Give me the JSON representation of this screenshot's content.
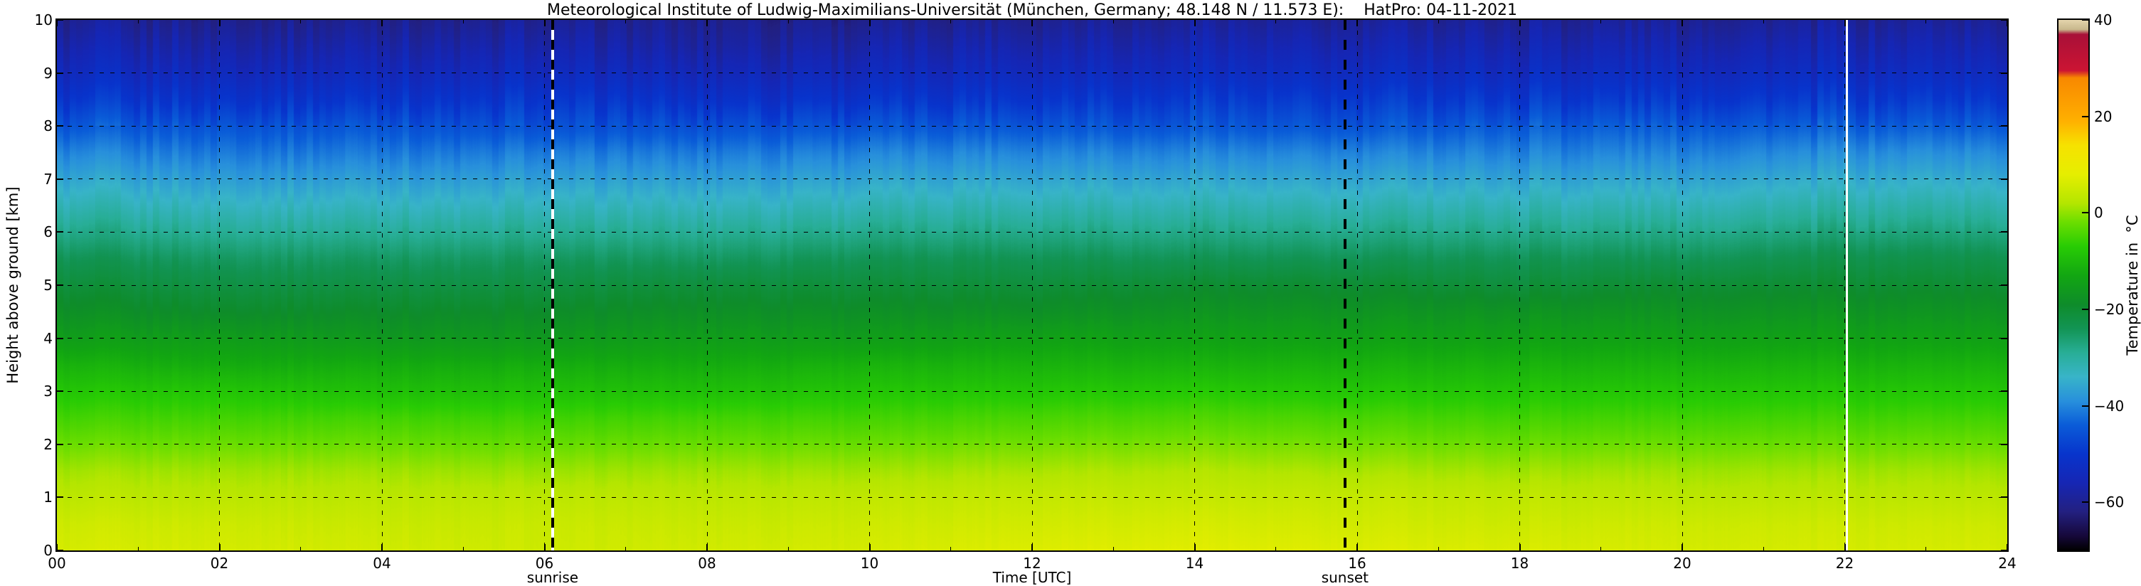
{
  "chart_data": {
    "type": "heatmap",
    "title": "Meteorological Institute of Ludwig-Maximilians-Universität (München, Germany; 48.148 N / 11.573 E):    HatPro: 04-11-2021",
    "xlabel": "Time [UTC]",
    "ylabel": "Height above ground [km]",
    "xlim": [
      0,
      24
    ],
    "ylim": [
      0,
      10
    ],
    "grid": {
      "style": "dashed",
      "color": "#000000"
    },
    "frame_color": "#000000",
    "x_ticks": [
      "00",
      "02",
      "04",
      "06",
      "08",
      "10",
      "12",
      "14",
      "16",
      "18",
      "20",
      "22",
      "24"
    ],
    "x_tick_hours": [
      0,
      2,
      4,
      6,
      8,
      10,
      12,
      14,
      16,
      18,
      20,
      22,
      24
    ],
    "y_ticks": [
      "0",
      "1",
      "2",
      "3",
      "4",
      "5",
      "6",
      "7",
      "8",
      "9",
      "10"
    ],
    "y_tick_km": [
      0,
      1,
      2,
      3,
      4,
      5,
      6,
      7,
      8,
      9,
      10
    ],
    "x_hours": [
      0,
      2,
      4,
      6,
      8,
      10,
      12,
      14,
      16,
      18,
      20,
      22,
      24
    ],
    "y_km": [
      0,
      0.5,
      1,
      1.5,
      2,
      2.5,
      3,
      3.5,
      4,
      4.5,
      5,
      5.5,
      6,
      6.5,
      7,
      7.5,
      8,
      8.5,
      9,
      9.5,
      10
    ],
    "temperature_c": [
      [
        6,
        5,
        3,
        1,
        -2,
        -5,
        -8,
        -11,
        -15,
        -18,
        -21,
        -24,
        -28,
        -32,
        -36,
        -40,
        -45,
        -50,
        -54,
        -57,
        -60
      ],
      [
        6,
        5,
        3,
        1,
        -2,
        -5,
        -8,
        -12,
        -15,
        -19,
        -22,
        -25,
        -29,
        -33,
        -37,
        -41,
        -45,
        -50,
        -54,
        -57,
        -60
      ],
      [
        5.5,
        4.5,
        3,
        1,
        -2,
        -5,
        -9,
        -12,
        -16,
        -19,
        -22,
        -25,
        -29,
        -33,
        -37,
        -41,
        -45,
        -50,
        -54,
        -57,
        -60
      ],
      [
        5,
        4.5,
        3,
        0.5,
        -2.5,
        -5.5,
        -9,
        -12,
        -16,
        -19,
        -22,
        -25,
        -29,
        -33,
        -37,
        -41,
        -46,
        -50,
        -54,
        -57,
        -60
      ],
      [
        5.5,
        4.5,
        3,
        1,
        -2,
        -5,
        -9,
        -12,
        -15,
        -18,
        -21,
        -25,
        -29,
        -33,
        -37,
        -41,
        -46,
        -51,
        -55,
        -58,
        -60
      ],
      [
        6,
        5,
        3.5,
        1,
        -2,
        -5,
        -8,
        -11,
        -15,
        -18,
        -21,
        -24,
        -28,
        -32,
        -36,
        -40,
        -45,
        -50,
        -54,
        -57,
        -60
      ],
      [
        7,
        5.5,
        4,
        1.5,
        -1.5,
        -4.5,
        -8,
        -11,
        -14,
        -18,
        -21,
        -24,
        -28,
        -32,
        -36,
        -40,
        -45,
        -50,
        -54,
        -57,
        -60
      ],
      [
        7.5,
        6,
        4,
        2,
        -1,
        -4,
        -7.5,
        -11,
        -14,
        -17,
        -20,
        -24,
        -28,
        -32,
        -36,
        -40,
        -45,
        -49,
        -53,
        -56,
        -59
      ],
      [
        7,
        5.5,
        4,
        1.5,
        -1.5,
        -4.5,
        -8,
        -11,
        -14,
        -17,
        -20,
        -24,
        -28,
        -32,
        -36,
        -40,
        -45,
        -49,
        -53,
        -56,
        -59
      ],
      [
        6.5,
        5,
        3.5,
        1,
        -2,
        -5,
        -8,
        -11,
        -14,
        -17,
        -21,
        -24,
        -28,
        -32,
        -36,
        -40,
        -44,
        -49,
        -53,
        -56,
        -59
      ],
      [
        6,
        5,
        3,
        1,
        -2,
        -5,
        -8,
        -11,
        -14,
        -17,
        -20,
        -24,
        -28,
        -32,
        -36,
        -40,
        -44,
        -49,
        -53,
        -56,
        -59
      ],
      [
        6,
        5,
        3,
        1,
        -2,
        -5,
        -8,
        -11,
        -14,
        -17,
        -20,
        -23,
        -27,
        -31,
        -35,
        -39,
        -44,
        -49,
        -53,
        -56,
        -59
      ],
      [
        6,
        5,
        3,
        1,
        -2,
        -5,
        -8,
        -11,
        -14,
        -17,
        -20,
        -23,
        -27,
        -31,
        -35,
        -39,
        -44,
        -49,
        -53,
        -56,
        -59
      ]
    ],
    "colormap_stops": [
      {
        "t": -70,
        "c": "#000000"
      },
      {
        "t": -67,
        "c": "#16083a"
      },
      {
        "t": -62,
        "c": "#232080"
      },
      {
        "t": -56,
        "c": "#1626b4"
      },
      {
        "t": -50,
        "c": "#0834cc"
      },
      {
        "t": -44,
        "c": "#0a5cd8"
      },
      {
        "t": -39,
        "c": "#2890dc"
      },
      {
        "t": -34,
        "c": "#38b4c8"
      },
      {
        "t": -29,
        "c": "#28ae96"
      },
      {
        "t": -24,
        "c": "#129454"
      },
      {
        "t": -19,
        "c": "#0e8c2a"
      },
      {
        "t": -13,
        "c": "#12a612"
      },
      {
        "t": -7,
        "c": "#28cc04"
      },
      {
        "t": -2,
        "c": "#6ade00"
      },
      {
        "t": 2,
        "c": "#b4e600"
      },
      {
        "t": 8,
        "c": "#e6ee00"
      },
      {
        "t": 14,
        "c": "#f6e200"
      },
      {
        "t": 19,
        "c": "#ffb000"
      },
      {
        "t": 28,
        "c": "#f88800"
      },
      {
        "t": 29.5,
        "c": "#cc1433"
      },
      {
        "t": 37,
        "c": "#a81038"
      },
      {
        "t": 38,
        "c": "#c8b88c"
      },
      {
        "t": 40,
        "c": "#e4d4ac"
      }
    ],
    "colorbar": {
      "label": "Temperature in  °C",
      "range": [
        -70,
        40
      ],
      "tick_values": [
        40,
        20,
        0,
        -20,
        -40,
        -60
      ],
      "tick_labels": [
        "40",
        "20",
        "0",
        "−20",
        "−40",
        "−60"
      ]
    },
    "annotations": {
      "sunrise": {
        "label": "sunrise",
        "time_utc": 6.1,
        "line_style": "dashed-black-white"
      },
      "sunset": {
        "label": "sunset",
        "time_utc": 15.85,
        "line_style": "dashed-black"
      },
      "data_gap": {
        "time_utc": 22.03,
        "color": "#ffffff"
      }
    }
  }
}
